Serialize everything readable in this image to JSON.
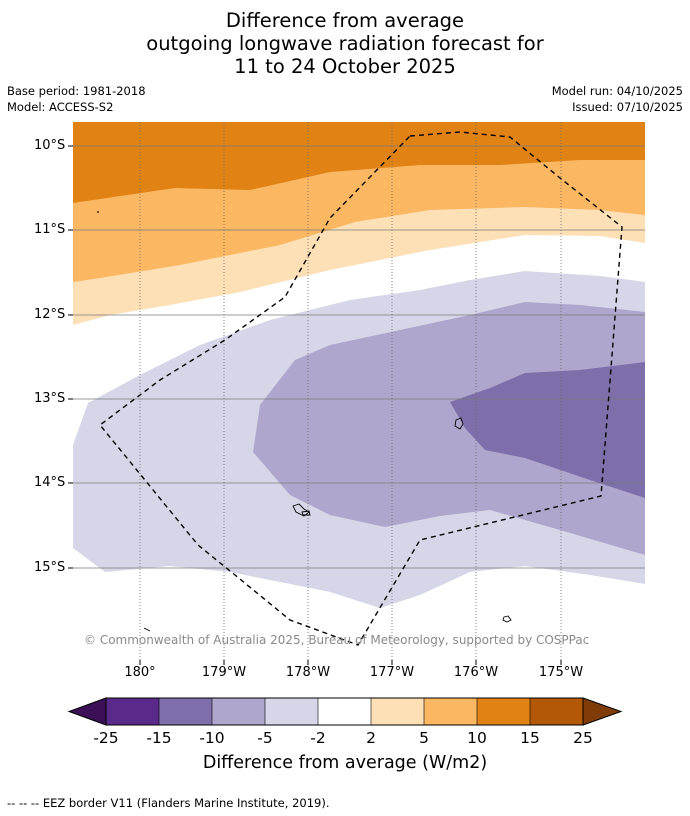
{
  "title": {
    "line1": "Difference from average",
    "line2": "outgoing longwave radiation forecast for",
    "line3": "11 to 24 October 2025"
  },
  "meta": {
    "base_period": "Base period: 1981-2018",
    "model": "Model: ACCESS-S2",
    "model_run": "Model run: 04/10/2025",
    "issued": "Issued: 07/10/2025"
  },
  "map": {
    "lat_labels": [
      "10°S",
      "11°S",
      "12°S",
      "13°S",
      "14°S",
      "15°S"
    ],
    "lon_labels": [
      "180°",
      "179°W",
      "178°W",
      "177°W",
      "176°W",
      "175°W"
    ],
    "credit": "© Commonwealth of Australia 2025, Bureau of Meteorology, supported by COSPPac"
  },
  "colorbar": {
    "labels": [
      "-25",
      "-15",
      "-10",
      "-5",
      "-2",
      "2",
      "5",
      "10",
      "15",
      "25"
    ],
    "colors": [
      "#3b1057",
      "#5a2a8a",
      "#7e6fab",
      "#afa6ce",
      "#d6d6e8",
      "#ffffff",
      "#fee0b6",
      "#fbb761",
      "#e08214",
      "#b35806",
      "#7f3b08"
    ],
    "title": "Difference from average (W/m2)"
  },
  "footer": "-- -- -- EEZ border V11 (Flanders Marine Institute, 2019)."
}
